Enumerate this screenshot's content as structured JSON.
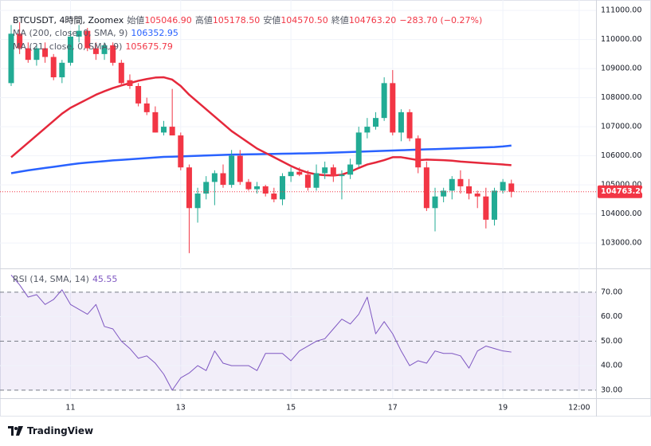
{
  "header": {
    "symbol": "BTCUSDT, 4時間, Zoomex",
    "ohlc": [
      {
        "label": "始値",
        "value": "105046.90"
      },
      {
        "label": "高値",
        "value": "105178.50"
      },
      {
        "label": "安値",
        "value": "104570.50"
      },
      {
        "label": "終値",
        "value": "104763.20"
      }
    ],
    "change": "−283.70 (−0.27%)"
  },
  "chart_data": [
    {
      "type": "candlestick",
      "categories": [
        null,
        null,
        null,
        null,
        null,
        null,
        null,
        "11",
        null,
        null,
        null,
        null,
        null,
        null,
        null,
        null,
        null,
        null,
        null,
        null,
        "13",
        null,
        null,
        null,
        null,
        null,
        null,
        null,
        null,
        null,
        null,
        null,
        null,
        "15",
        null,
        null,
        null,
        null,
        null,
        null,
        null,
        null,
        null,
        null,
        null,
        "17",
        null,
        null,
        null,
        null,
        null,
        null,
        null,
        null,
        null,
        null,
        null,
        null,
        "19",
        null,
        null,
        null,
        null,
        null,
        null,
        null,
        null,
        "12:00",
        null,
        null
      ],
      "open": [
        108500,
        110200,
        109700,
        109300,
        109700,
        109400,
        108700,
        109200,
        110100,
        110300,
        109700,
        109500,
        109800,
        109200,
        108600,
        108400,
        107800,
        107500,
        106800,
        107000,
        106700,
        105600,
        104200,
        104700,
        105100,
        105400,
        105000,
        106000,
        105100,
        104850,
        104950,
        104700,
        104500,
        105300,
        105450,
        105350,
        104900,
        105400,
        105600,
        105300,
        105350,
        105700,
        106800,
        107000,
        107300,
        108500,
        106800,
        107500,
        106600,
        105600,
        104200,
        104600,
        104800,
        105200,
        104950,
        104700,
        104600,
        103800,
        104800,
        105046.9,
        null,
        null,
        null,
        null,
        null,
        null,
        null,
        null,
        null,
        null
      ],
      "high": [
        110500,
        110600,
        109900,
        109800,
        109900,
        109500,
        109300,
        110300,
        110500,
        110400,
        109900,
        109900,
        109900,
        109300,
        108800,
        108500,
        108000,
        107700,
        107200,
        108300,
        106800,
        105700,
        104900,
        105300,
        105500,
        105700,
        106200,
        106200,
        105200,
        105100,
        105000,
        104900,
        105400,
        105600,
        105600,
        105500,
        105700,
        105800,
        105700,
        105500,
        105900,
        107000,
        107300,
        107500,
        108700,
        108950,
        107600,
        107600,
        106700,
        105800,
        104900,
        104900,
        105300,
        105500,
        105200,
        104800,
        104900,
        104900,
        105200,
        105178.5,
        null,
        null,
        null,
        null,
        null,
        null,
        null,
        null,
        null,
        null
      ],
      "low": [
        108400,
        109500,
        109200,
        109100,
        109200,
        108600,
        108500,
        109100,
        109900,
        109600,
        109300,
        109300,
        109100,
        108400,
        108300,
        107700,
        107400,
        106800,
        106700,
        106700,
        105500,
        102650,
        103700,
        104500,
        104300,
        104900,
        104900,
        105000,
        104800,
        104700,
        104600,
        104400,
        104300,
        105100,
        105300,
        104800,
        104800,
        105200,
        105100,
        104500,
        105200,
        105600,
        106600,
        106900,
        107200,
        106700,
        106500,
        106500,
        105400,
        104100,
        103400,
        104400,
        104500,
        104700,
        104500,
        104200,
        103500,
        103600,
        104700,
        104570.5,
        null,
        null,
        null,
        null,
        null,
        null,
        null,
        null,
        null,
        null
      ],
      "close": [
        110200,
        109700,
        109300,
        109700,
        109400,
        108700,
        109200,
        110100,
        110300,
        109700,
        109500,
        109800,
        109200,
        108500,
        108400,
        107800,
        107500,
        106800,
        107000,
        106700,
        105600,
        104200,
        104700,
        105100,
        105400,
        105000,
        106000,
        105100,
        104850,
        104950,
        104700,
        104500,
        105300,
        105450,
        105350,
        104900,
        105400,
        105600,
        105300,
        105350,
        105700,
        106800,
        107000,
        107300,
        108500,
        106800,
        107500,
        106600,
        105600,
        104200,
        104600,
        104800,
        105200,
        104950,
        104700,
        104600,
        103800,
        104800,
        105100,
        104763.2,
        null,
        null,
        null,
        null,
        null,
        null,
        null,
        null,
        null,
        null
      ],
      "up_color": "#22ab94",
      "down_color": "#f23645",
      "series": [
        {
          "name": "MA (200, close, 0, SMA, 9)",
          "color": "#2962ff",
          "last_label": "106352.95",
          "values": [
            105400,
            105450,
            105500,
            105540,
            105580,
            105620,
            105660,
            105700,
            105740,
            105765,
            105790,
            105815,
            105840,
            105860,
            105880,
            105900,
            105920,
            105940,
            105960,
            105970,
            105980,
            105990,
            106000,
            106010,
            106020,
            106030,
            106040,
            106045,
            106050,
            106055,
            106060,
            106065,
            106070,
            106075,
            106080,
            106085,
            106090,
            106100,
            106110,
            106120,
            106130,
            106140,
            106150,
            106160,
            106170,
            106180,
            106190,
            106200,
            106210,
            106220,
            106230,
            106240,
            106250,
            106260,
            106270,
            106280,
            106290,
            106300,
            106320,
            106352.95,
            null,
            null,
            null,
            null,
            null,
            null,
            null,
            null,
            null,
            null
          ]
        },
        {
          "name": "MA (21, close, 0, SMA, 9)",
          "color": "#e5283b",
          "last_label": "105675.79",
          "values": [
            105950,
            106200,
            106450,
            106700,
            106950,
            107200,
            107450,
            107650,
            107800,
            107950,
            108100,
            108220,
            108330,
            108420,
            108500,
            108580,
            108640,
            108690,
            108700,
            108620,
            108400,
            108100,
            107850,
            107600,
            107350,
            107100,
            106850,
            106650,
            106450,
            106250,
            106100,
            105950,
            105800,
            105650,
            105520,
            105420,
            105360,
            105330,
            105320,
            105350,
            105450,
            105580,
            105700,
            105770,
            105850,
            105950,
            105950,
            105900,
            105850,
            105870,
            105860,
            105850,
            105830,
            105800,
            105780,
            105760,
            105740,
            105720,
            105700,
            105675.79,
            null,
            null,
            null,
            null,
            null,
            null,
            null,
            null,
            null,
            null
          ]
        }
      ],
      "last_price": {
        "value": 104763.2,
        "label": "104763.20"
      },
      "ylim": [
        102180,
        111250
      ],
      "yticks": [
        {
          "value": 103000,
          "label": "103000.00"
        },
        {
          "value": 104000,
          "label": "104000.00"
        },
        {
          "value": 105000,
          "label": "105000.00"
        },
        {
          "value": 106000,
          "label": "106000.00"
        },
        {
          "value": 107000,
          "label": "107000.00"
        },
        {
          "value": 108000,
          "label": "108000.00"
        },
        {
          "value": 109000,
          "label": "109000.00"
        },
        {
          "value": 110000,
          "label": "110000.00"
        },
        {
          "value": 111000,
          "label": "111000.00"
        }
      ],
      "grid": true
    },
    {
      "type": "line",
      "series": [
        {
          "name": "RSI (14, SMA, 14)",
          "color": "#7e57c2",
          "last_label": "45.55",
          "values": [
            77,
            73,
            68,
            69,
            65,
            67,
            71,
            65,
            63,
            61,
            65,
            56,
            55,
            50,
            47,
            43,
            44,
            41,
            36.5,
            30,
            35,
            37,
            40,
            38,
            46,
            41,
            40,
            40,
            40,
            38,
            45,
            45,
            45,
            42,
            46,
            48,
            50,
            51,
            55,
            59,
            57,
            61,
            68,
            53,
            58,
            53,
            46,
            40,
            42,
            41,
            46,
            45,
            45,
            44,
            39,
            46,
            48,
            47,
            46,
            45.55,
            null,
            null,
            null,
            null,
            null,
            null,
            null,
            null,
            null,
            null
          ]
        }
      ],
      "band": [
        30,
        70
      ],
      "band_color": "#7e57c2",
      "dashed_lines": [
        30,
        50,
        70
      ],
      "ylim": [
        26.7,
        79.4
      ],
      "yticks": [
        {
          "value": 30,
          "label": "30.00"
        },
        {
          "value": 40,
          "label": "40.00"
        },
        {
          "value": 50,
          "label": "50.00"
        },
        {
          "value": 60,
          "label": "60.00"
        },
        {
          "value": 70,
          "label": "70.00"
        }
      ],
      "grid": true
    }
  ],
  "footer": {
    "brand": "TradingView"
  }
}
